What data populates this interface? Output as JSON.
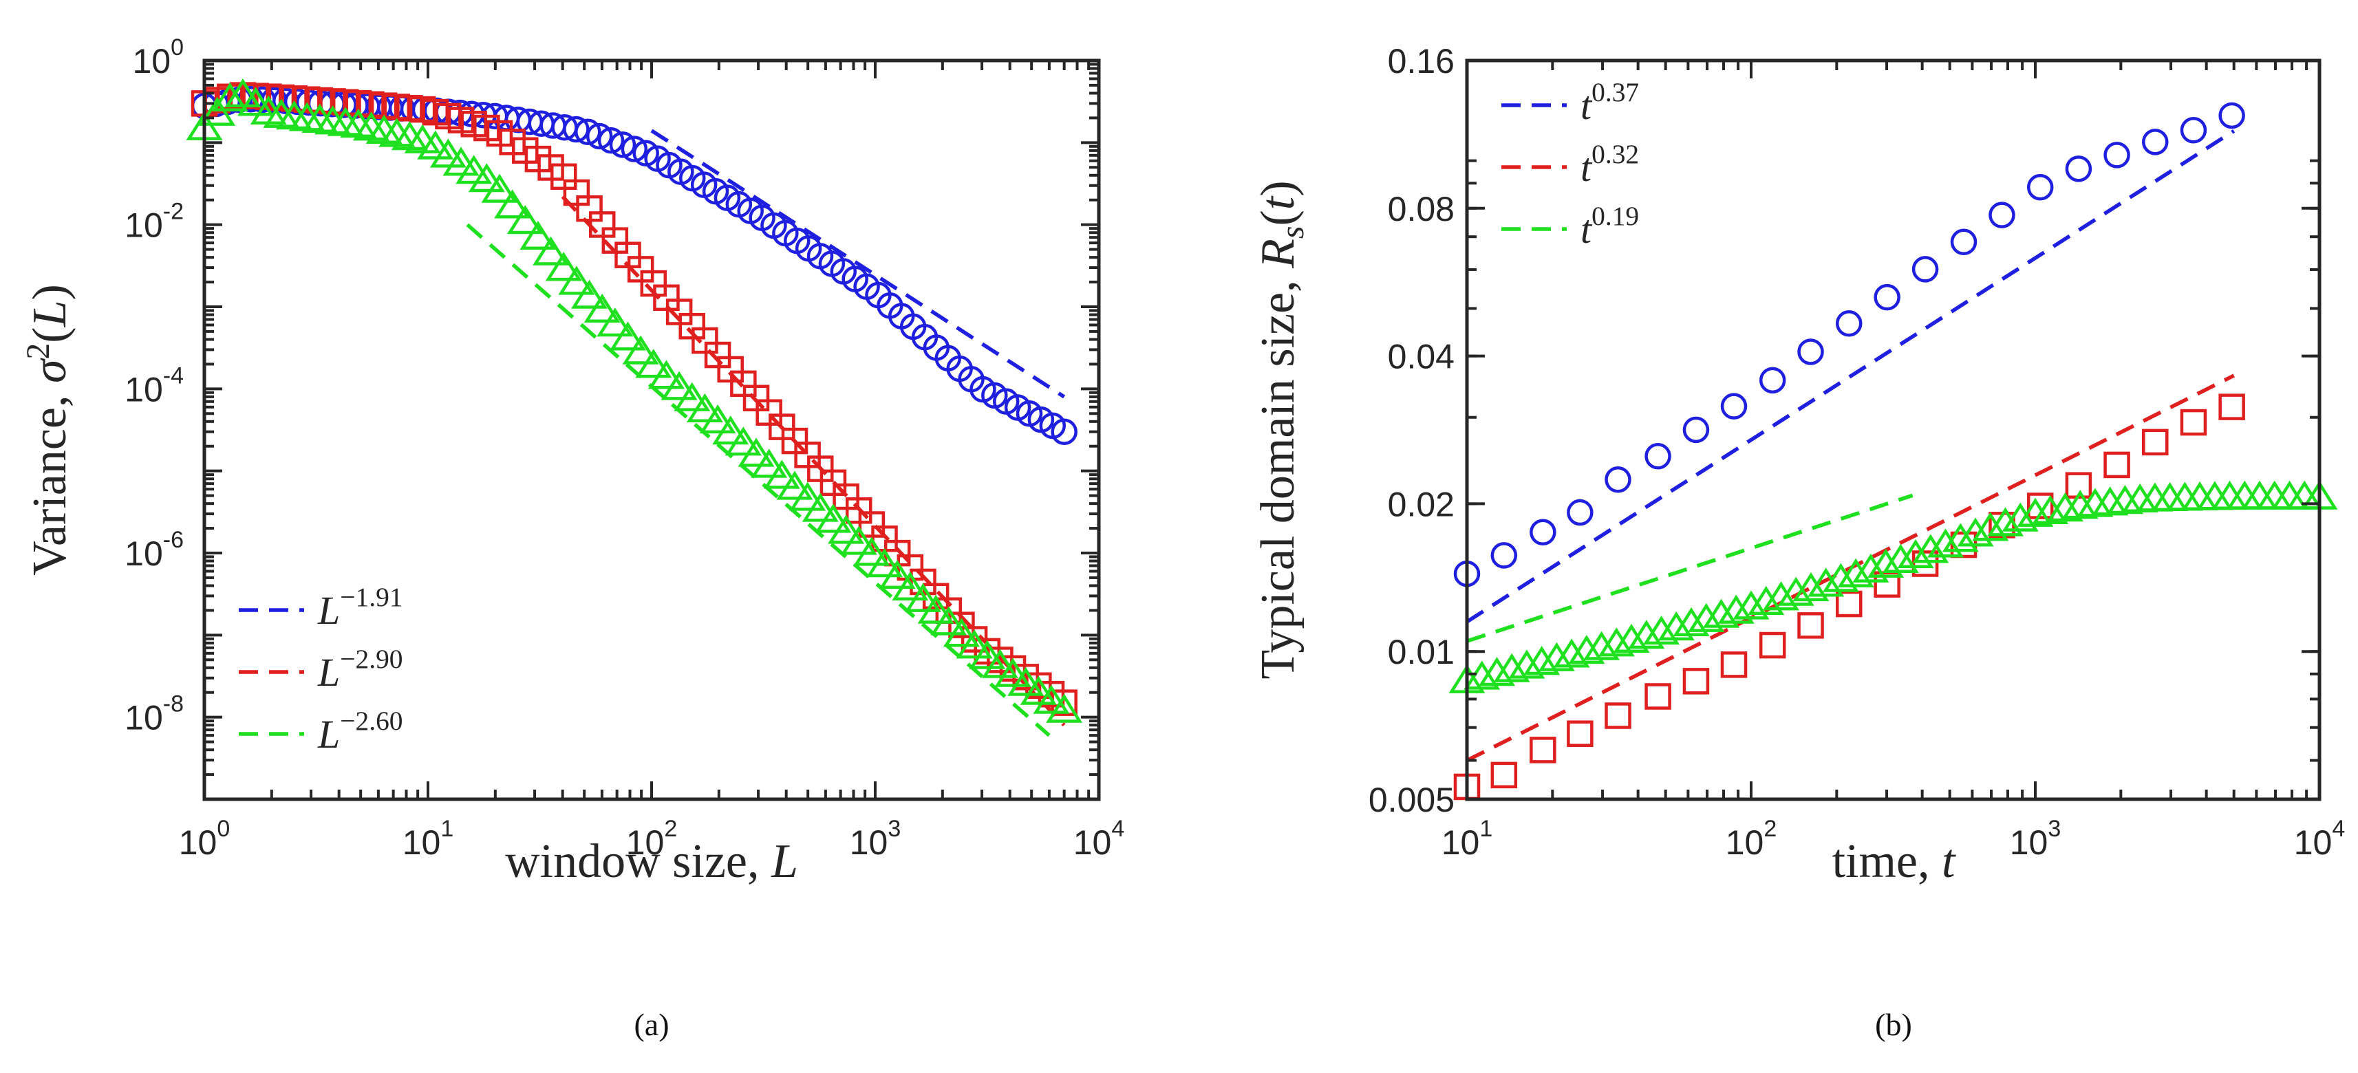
{
  "chart_data": [
    {
      "type": "scatter",
      "panel_label": "a",
      "xscale": "log",
      "yscale": "log",
      "xlim": [
        1,
        10000
      ],
      "ylim": [
        1e-09,
        1
      ],
      "xlabel": "window size, L",
      "ylabel": "Variance, σ²(L)",
      "x_ticks": [
        {
          "base": "10",
          "exp": "0"
        },
        {
          "base": "10",
          "exp": "1"
        },
        {
          "base": "10",
          "exp": "2"
        },
        {
          "base": "10",
          "exp": "3"
        },
        {
          "base": "10",
          "exp": "4"
        }
      ],
      "y_ticks": [
        {
          "base": "10",
          "exp": "0"
        },
        {
          "base": "10",
          "exp": "-2"
        },
        {
          "base": "10",
          "exp": "-4"
        },
        {
          "base": "10",
          "exp": "-6"
        },
        {
          "base": "10",
          "exp": "-8"
        }
      ],
      "legend_position": "bottom-left",
      "legend": [
        {
          "base": "L",
          "exp": "−1.91",
          "color": "#1f1fe0"
        },
        {
          "base": "L",
          "exp": "−2.90",
          "color": "#e01f1f"
        },
        {
          "base": "L",
          "exp": "−2.60",
          "color": "#1fe01f"
        }
      ],
      "series": [
        {
          "name": "blue",
          "marker": "circle",
          "color": "#1f1fe0",
          "x_range": [
            1,
            7000
          ],
          "points": 75,
          "profile": [
            [
              1,
              0.28
            ],
            [
              1.5,
              0.34
            ],
            [
              2,
              0.33
            ],
            [
              5,
              0.28
            ],
            [
              10,
              0.25
            ],
            [
              20,
              0.21
            ],
            [
              50,
              0.14
            ],
            [
              100,
              0.07
            ],
            [
              300,
              0.013
            ],
            [
              1000,
              0.0015
            ],
            [
              3000,
              0.0001
            ],
            [
              7000,
              3e-05
            ]
          ]
        },
        {
          "name": "red",
          "marker": "square",
          "color": "#e01f1f",
          "x_range": [
            1,
            7000
          ],
          "points": 68,
          "profile": [
            [
              1,
              0.3
            ],
            [
              1.4,
              0.38
            ],
            [
              2,
              0.36
            ],
            [
              5,
              0.3
            ],
            [
              10,
              0.25
            ],
            [
              20,
              0.14
            ],
            [
              40,
              0.04
            ],
            [
              70,
              0.006
            ],
            [
              150,
              0.0006
            ],
            [
              400,
              3e-05
            ],
            [
              1000,
              2e-06
            ],
            [
              3000,
              7e-08
            ],
            [
              7000,
              1.5e-08
            ]
          ]
        },
        {
          "name": "green",
          "marker": "triangle",
          "color": "#1fe01f",
          "x_range": [
            1,
            7000
          ],
          "points": 68,
          "profile": [
            [
              1,
              0.15
            ],
            [
              1.4,
              0.42
            ],
            [
              2,
              0.22
            ],
            [
              5,
              0.16
            ],
            [
              10,
              0.1
            ],
            [
              20,
              0.03
            ],
            [
              40,
              0.003
            ],
            [
              100,
              0.0002
            ],
            [
              300,
              1.5e-05
            ],
            [
              1000,
              9e-07
            ],
            [
              3000,
              6e-08
            ],
            [
              7000,
              1.2e-08
            ]
          ]
        }
      ],
      "fit_lines": [
        {
          "name": "L^-1.91",
          "color": "#1f1fe0",
          "x": [
            100,
            7000
          ],
          "y": [
            0.14,
            8e-05
          ]
        },
        {
          "name": "L^-2.90",
          "color": "#e01f1f",
          "x": [
            40,
            7000
          ],
          "y": [
            0.022,
            8e-09
          ]
        },
        {
          "name": "L^-2.60",
          "color": "#1fe01f",
          "x": [
            15,
            6000
          ],
          "y": [
            0.01,
            6e-09
          ]
        }
      ]
    },
    {
      "type": "scatter",
      "panel_label": "b",
      "xscale": "log",
      "yscale": "log",
      "xlim": [
        10,
        10000
      ],
      "ylim": [
        0.005,
        0.16
      ],
      "xlabel": "time, t",
      "ylabel": "Typical domain size, R_s(t)",
      "x_ticks": [
        {
          "base": "10",
          "exp": "1"
        },
        {
          "base": "10",
          "exp": "2"
        },
        {
          "base": "10",
          "exp": "3"
        },
        {
          "base": "10",
          "exp": "4"
        }
      ],
      "y_ticks": [
        "0.16",
        "0.08",
        "0.04",
        "0.02",
        "0.01",
        "0.005"
      ],
      "legend_position": "top-left",
      "legend": [
        {
          "base": "t",
          "exp": "0.37",
          "color": "#1f1fe0"
        },
        {
          "base": "t",
          "exp": "0.32",
          "color": "#e01f1f"
        },
        {
          "base": "t",
          "exp": "0.19",
          "color": "#1fe01f"
        }
      ],
      "series": [
        {
          "name": "blue",
          "marker": "circle",
          "color": "#1f1fe0",
          "x": [
            10,
            13.5,
            18.5,
            25,
            34,
            47,
            64,
            87,
            119,
            162,
            221,
            301,
            410,
            560,
            763,
            1041,
            1420,
            1937,
            2642,
            3604,
            4916
          ],
          "y": [
            0.0144,
            0.0157,
            0.0175,
            0.0192,
            0.0224,
            0.025,
            0.0283,
            0.0316,
            0.0357,
            0.0408,
            0.0466,
            0.0527,
            0.0601,
            0.0683,
            0.0775,
            0.0883,
            0.0963,
            0.1027,
            0.1092,
            0.1154,
            0.1236
          ]
        },
        {
          "name": "red",
          "marker": "square",
          "color": "#e01f1f",
          "x": [
            10,
            13.5,
            18.5,
            25,
            34,
            47,
            64,
            87,
            119,
            162,
            221,
            301,
            410,
            560,
            763,
            1041,
            1420,
            1937,
            2642,
            3604,
            4916
          ],
          "y": [
            0.0053,
            0.0056,
            0.0063,
            0.0068,
            0.0074,
            0.0081,
            0.0087,
            0.0094,
            0.0103,
            0.0113,
            0.0125,
            0.0137,
            0.0151,
            0.0165,
            0.0181,
            0.0198,
            0.0218,
            0.024,
            0.0267,
            0.0293,
            0.0315
          ]
        },
        {
          "name": "green",
          "marker": "triangle",
          "color": "#1fe01f",
          "x_range": [
            10,
            10000
          ],
          "points": 58,
          "profile": [
            [
              10,
              0.0087
            ],
            [
              20,
              0.0096
            ],
            [
              40,
              0.0106
            ],
            [
              100,
              0.0123
            ],
            [
              200,
              0.0139
            ],
            [
              400,
              0.0158
            ],
            [
              700,
              0.0178
            ],
            [
              1000,
              0.019
            ],
            [
              1500,
              0.0198
            ],
            [
              2500,
              0.0204
            ],
            [
              5000,
              0.0206
            ],
            [
              10000,
              0.0206
            ]
          ]
        }
      ],
      "fit_lines": [
        {
          "name": "t^0.37",
          "color": "#1f1fe0",
          "x": [
            10,
            5000
          ],
          "y": [
            0.0115,
            0.115
          ]
        },
        {
          "name": "t^0.32",
          "color": "#e01f1f",
          "x": [
            10,
            5000
          ],
          "y": [
            0.006,
            0.0365
          ]
        },
        {
          "name": "t^0.19",
          "color": "#1fe01f",
          "x": [
            10,
            370
          ],
          "y": [
            0.0105,
            0.0208
          ]
        }
      ]
    }
  ],
  "captions": {
    "a": "(a)",
    "b": "(b)"
  }
}
